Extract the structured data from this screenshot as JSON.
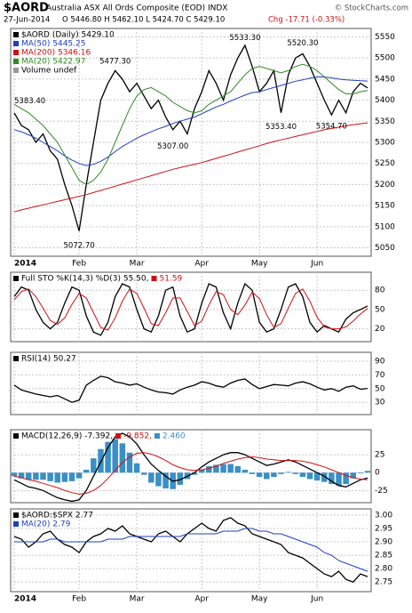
{
  "header": {
    "symbol": "$AORD",
    "name": "Australia ASX All Ords Composite (EOD) INDX",
    "date": "27-Jun-2014",
    "ohlc": "O 5446.80 H 5462.10 L 5424.70 C 5429.10",
    "change": "Chg -17.71 (-0.33%)",
    "source": "© StockCharts.com"
  },
  "chart_data": [
    {
      "type": "line",
      "legend": "top-left",
      "legend_layout": "column",
      "grid": true,
      "note": "Volume undef",
      "categories": [
        "2014",
        null,
        null,
        null,
        null,
        null,
        null,
        null,
        null,
        "Feb",
        null,
        null,
        null,
        null,
        null,
        null,
        null,
        "Mar",
        null,
        null,
        null,
        null,
        null,
        null,
        null,
        null,
        "Apr",
        null,
        null,
        null,
        null,
        null,
        null,
        null,
        "May",
        null,
        null,
        null,
        null,
        null,
        null,
        null,
        "Jun",
        null,
        null,
        null,
        null,
        null,
        null,
        null
      ],
      "ylim": [
        5030,
        5570
      ],
      "yticks": [
        5050,
        5100,
        5150,
        5200,
        5250,
        5300,
        5350,
        5400,
        5450,
        5500,
        5550
      ],
      "series": [
        {
          "name": "$AORD (Daily) 5429.10",
          "color": "#000000",
          "values": [
            5370,
            5340,
            5330,
            5300,
            5320,
            5280,
            5260,
            5200,
            5150,
            5090,
            5200,
            5300,
            5400,
            5440,
            5470,
            5450,
            5420,
            5440,
            5410,
            5380,
            5400,
            5360,
            5330,
            5350,
            5320,
            5380,
            5420,
            5470,
            5440,
            5400,
            5460,
            5500,
            5530,
            5480,
            5420,
            5440,
            5470,
            5370,
            5460,
            5500,
            5510,
            5480,
            5440,
            5400,
            5365,
            5400,
            5370,
            5420,
            5440,
            5429.1
          ]
        },
        {
          "name": "MA(50) 5445.25",
          "color": "#1f3fbf",
          "values": [
            5330,
            5325,
            5318,
            5310,
            5300,
            5290,
            5280,
            5268,
            5258,
            5250,
            5245,
            5248,
            5255,
            5265,
            5278,
            5290,
            5300,
            5310,
            5318,
            5325,
            5332,
            5338,
            5345,
            5350,
            5355,
            5360,
            5368,
            5376,
            5384,
            5390,
            5398,
            5405,
            5412,
            5418,
            5420,
            5425,
            5430,
            5435,
            5440,
            5445,
            5448,
            5452,
            5455,
            5455,
            5453,
            5450,
            5448,
            5447,
            5446,
            5445.25
          ]
        },
        {
          "name": "MA(200) 5346.16",
          "color": "#d01010",
          "values": [
            5135,
            5140,
            5144,
            5148,
            5152,
            5156,
            5160,
            5164,
            5168,
            5172,
            5176,
            5181,
            5186,
            5191,
            5196,
            5201,
            5206,
            5211,
            5216,
            5221,
            5226,
            5231,
            5236,
            5240,
            5244,
            5248,
            5252,
            5257,
            5262,
            5267,
            5272,
            5277,
            5282,
            5287,
            5292,
            5297,
            5302,
            5306,
            5310,
            5314,
            5318,
            5322,
            5326,
            5330,
            5333,
            5336,
            5339,
            5342,
            5344,
            5346.16
          ]
        },
        {
          "name": "MA(20) 5422.97",
          "color": "#2e8b22",
          "values": [
            5390,
            5380,
            5370,
            5355,
            5340,
            5320,
            5300,
            5270,
            5240,
            5210,
            5200,
            5210,
            5230,
            5260,
            5300,
            5340,
            5380,
            5410,
            5425,
            5430,
            5420,
            5410,
            5395,
            5385,
            5375,
            5370,
            5375,
            5390,
            5400,
            5410,
            5420,
            5440,
            5460,
            5475,
            5480,
            5475,
            5470,
            5465,
            5470,
            5480,
            5485,
            5480,
            5470,
            5455,
            5440,
            5425,
            5415,
            5415,
            5420,
            5422.97
          ]
        }
      ],
      "annotations": [
        {
          "x": 0,
          "value": 5383.4,
          "label": "5383.40"
        },
        {
          "x": 9,
          "value": 5072.7,
          "label": "5072.70"
        },
        {
          "x": 14,
          "value": 5477.3,
          "label": "5477.30"
        },
        {
          "x": 22,
          "value": 5307,
          "label": "5307.00"
        },
        {
          "x": 32,
          "value": 5533.3,
          "label": "5533.30"
        },
        {
          "x": 40,
          "value": 5520.3,
          "label": "5520.30"
        },
        {
          "x": 37,
          "value": 5353.4,
          "label": "5353.40"
        },
        {
          "x": 44,
          "value": 5354.7,
          "label": "5354.70"
        }
      ]
    },
    {
      "type": "line",
      "legend": "top-left",
      "legend_layout": "row",
      "grid": true,
      "ylim": [
        0,
        108
      ],
      "yticks": [
        20,
        50,
        80
      ],
      "series": [
        {
          "name": "Full STO %K(14,3) %D(3) 55.50,",
          "color": "#000000",
          "values": [
            70,
            85,
            80,
            50,
            30,
            20,
            30,
            60,
            85,
            80,
            40,
            15,
            10,
            30,
            70,
            90,
            85,
            50,
            20,
            15,
            40,
            80,
            85,
            40,
            15,
            20,
            60,
            90,
            85,
            45,
            20,
            60,
            90,
            80,
            30,
            15,
            20,
            50,
            85,
            90,
            70,
            30,
            15,
            25,
            20,
            15,
            35,
            45,
            50,
            55.5
          ]
        },
        {
          "name": "51.59",
          "color": "#d01010",
          "values": [
            65,
            78,
            82,
            70,
            52,
            33,
            27,
            37,
            58,
            75,
            68,
            45,
            22,
            18,
            37,
            63,
            82,
            75,
            52,
            28,
            25,
            45,
            68,
            68,
            47,
            25,
            32,
            57,
            78,
            73,
            50,
            42,
            57,
            77,
            67,
            42,
            22,
            28,
            52,
            75,
            82,
            63,
            38,
            23,
            20,
            20,
            23,
            32,
            43,
            51.59
          ]
        }
      ]
    },
    {
      "type": "line",
      "legend": "top-left",
      "legend_layout": "row",
      "grid": true,
      "ylim": [
        12,
        103
      ],
      "yticks": [
        30,
        50,
        70,
        90
      ],
      "series": [
        {
          "name": "RSI(14) 50.27",
          "color": "#000000",
          "values": [
            55,
            48,
            45,
            42,
            40,
            38,
            40,
            35,
            30,
            33,
            55,
            62,
            68,
            66,
            60,
            58,
            55,
            57,
            52,
            48,
            45,
            44,
            42,
            48,
            52,
            55,
            60,
            58,
            54,
            52,
            58,
            62,
            64,
            56,
            50,
            53,
            56,
            55,
            54,
            58,
            60,
            57,
            52,
            48,
            50,
            46,
            52,
            54,
            49,
            50.27
          ]
        }
      ]
    },
    {
      "type": "line",
      "legend": "top-left",
      "legend_layout": "row",
      "grid": true,
      "ylim": [
        -42,
        60
      ],
      "yticks": [
        -25,
        0,
        25
      ],
      "series": [
        {
          "name": "MACD(12,26,9) -7.392,",
          "color": "#000000",
          "values": [
            -10,
            -15,
            -20,
            -22,
            -25,
            -30,
            -35,
            -38,
            -40,
            -38,
            -25,
            -5,
            15,
            35,
            50,
            55,
            50,
            40,
            25,
            12,
            3,
            -5,
            -12,
            -10,
            -5,
            0,
            8,
            15,
            20,
            25,
            28,
            28,
            25,
            20,
            15,
            10,
            12,
            15,
            18,
            15,
            10,
            5,
            0,
            -5,
            -12,
            -18,
            -20,
            -15,
            -10,
            -7.392
          ]
        },
        {
          "name": "-9.852,",
          "color": "#d01010",
          "values": [
            -5,
            -7,
            -10,
            -12,
            -15,
            -18,
            -21,
            -25,
            -28,
            -30,
            -29,
            -25,
            -18,
            -8,
            3,
            14,
            22,
            27,
            28,
            26,
            22,
            17,
            11,
            7,
            4,
            3,
            4,
            6,
            9,
            13,
            16,
            19,
            21,
            22,
            21,
            19,
            18,
            17,
            17,
            17,
            16,
            14,
            11,
            8,
            4,
            0,
            -4,
            -7,
            -9,
            -9.852
          ]
        },
        {
          "name": "2.460",
          "color": "#3a8fc4",
          "type": "bar",
          "values": [
            -5,
            -8,
            -10,
            -10,
            -10,
            -12,
            -14,
            -13,
            -12,
            -8,
            4,
            20,
            33,
            43,
            47,
            41,
            28,
            13,
            -3,
            -14,
            -19,
            -22,
            -23,
            -17,
            -9,
            -3,
            4,
            9,
            11,
            12,
            12,
            9,
            4,
            -2,
            -6,
            -9,
            -6,
            -2,
            1,
            -2,
            -6,
            -9,
            -11,
            -13,
            -16,
            -18,
            -16,
            -8,
            -1,
            2.46
          ]
        }
      ]
    },
    {
      "type": "line",
      "legend": "top-left",
      "legend_layout": "column",
      "grid": true,
      "categories": [
        "2014",
        null,
        null,
        null,
        null,
        null,
        null,
        null,
        null,
        "Feb",
        null,
        null,
        null,
        null,
        null,
        null,
        null,
        "Mar",
        null,
        null,
        null,
        null,
        null,
        null,
        null,
        null,
        "Apr",
        null,
        null,
        null,
        null,
        null,
        null,
        null,
        "May",
        null,
        null,
        null,
        null,
        null,
        null,
        null,
        "Jun",
        null,
        null,
        null,
        null,
        null,
        null,
        null
      ],
      "ylim": [
        2.714,
        3.023
      ],
      "yticks": [
        {
          "value": 2.75,
          "label": "2.75"
        },
        {
          "value": 2.8,
          "label": "2.80"
        },
        2.85,
        {
          "value": 2.9,
          "label": "2.90"
        },
        2.95,
        {
          "value": 3,
          "label": "3.00"
        }
      ],
      "series": [
        {
          "name": "$AORD:$SPX 2.77",
          "color": "#000000",
          "values": [
            2.92,
            2.91,
            2.88,
            2.9,
            2.93,
            2.94,
            2.91,
            2.89,
            2.88,
            2.86,
            2.9,
            2.92,
            2.93,
            2.95,
            2.94,
            2.96,
            2.93,
            2.92,
            2.91,
            2.9,
            2.93,
            2.94,
            2.92,
            2.9,
            2.93,
            2.95,
            2.97,
            2.95,
            2.94,
            2.98,
            2.99,
            2.97,
            2.96,
            2.93,
            2.92,
            2.91,
            2.9,
            2.89,
            2.86,
            2.85,
            2.84,
            2.82,
            2.8,
            2.78,
            2.77,
            2.79,
            2.76,
            2.75,
            2.78,
            2.77
          ]
        },
        {
          "name": "MA(20) 2.79",
          "color": "#1f3fbf",
          "values": [
            2.9,
            2.9,
            2.9,
            2.9,
            2.9,
            2.91,
            2.91,
            2.9,
            2.9,
            2.9,
            2.9,
            2.9,
            2.9,
            2.91,
            2.91,
            2.91,
            2.92,
            2.92,
            2.92,
            2.92,
            2.92,
            2.92,
            2.92,
            2.92,
            2.93,
            2.93,
            2.93,
            2.93,
            2.93,
            2.94,
            2.94,
            2.94,
            2.95,
            2.95,
            2.94,
            2.94,
            2.93,
            2.93,
            2.92,
            2.91,
            2.9,
            2.89,
            2.88,
            2.86,
            2.85,
            2.83,
            2.82,
            2.81,
            2.8,
            2.79
          ]
        }
      ]
    }
  ]
}
